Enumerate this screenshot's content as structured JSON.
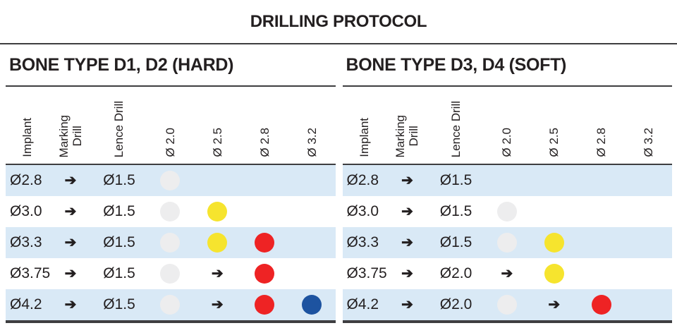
{
  "title": "DRILLING PROTOCOL",
  "glyphs": {
    "arrow": "➔"
  },
  "colors": {
    "theme": {
      "row-alt": "#d9e9f6",
      "line": "#3e3e40",
      "text": "#231f20"
    },
    "dots": {
      "gray": "#ededee",
      "yellow": "#f6e42e",
      "red": "#ee2324",
      "blue": "#1d53a0"
    }
  },
  "tables": [
    {
      "section_title": "BONE TYPE D1, D2 (HARD)",
      "columns": [
        "Implant",
        "Marking\nDrill",
        "Lence Drill",
        "Ø 2.0",
        "Ø 2.5",
        "Ø 2.8",
        "Ø 3.2"
      ],
      "rows": [
        {
          "implant": "Ø2.8",
          "marking": "arrow",
          "lence": "Ø1.5",
          "cells": [
            "gray",
            "",
            "",
            ""
          ]
        },
        {
          "implant": "Ø3.0",
          "marking": "arrow",
          "lence": "Ø1.5",
          "cells": [
            "gray",
            "yellow",
            "",
            ""
          ]
        },
        {
          "implant": "Ø3.3",
          "marking": "arrow",
          "lence": "Ø1.5",
          "cells": [
            "gray",
            "yellow",
            "red",
            ""
          ]
        },
        {
          "implant": "Ø3.75",
          "marking": "arrow",
          "lence": "Ø1.5",
          "cells": [
            "gray",
            "arrow",
            "red",
            ""
          ]
        },
        {
          "implant": "Ø4.2",
          "marking": "arrow",
          "lence": "Ø1.5",
          "cells": [
            "gray",
            "arrow",
            "red",
            "blue"
          ]
        }
      ]
    },
    {
      "section_title": "BONE TYPE D3, D4 (SOFT)",
      "columns": [
        "Implant",
        "Marking\nDrill",
        "Lence Drill",
        "Ø 2.0",
        "Ø 2.5",
        "Ø 2.8",
        "Ø 3.2"
      ],
      "rows": [
        {
          "implant": "Ø2.8",
          "marking": "arrow",
          "lence": "Ø1.5",
          "cells": [
            "",
            "",
            "",
            ""
          ]
        },
        {
          "implant": "Ø3.0",
          "marking": "arrow",
          "lence": "Ø1.5",
          "cells": [
            "gray",
            "",
            "",
            ""
          ]
        },
        {
          "implant": "Ø3.3",
          "marking": "arrow",
          "lence": "Ø1.5",
          "cells": [
            "gray",
            "yellow",
            "",
            ""
          ]
        },
        {
          "implant": "Ø3.75",
          "marking": "arrow",
          "lence": "Ø2.0",
          "cells": [
            "arrow",
            "yellow",
            "",
            ""
          ]
        },
        {
          "implant": "Ø4.2",
          "marking": "arrow",
          "lence": "Ø2.0",
          "cells": [
            "gray",
            "arrow",
            "red",
            ""
          ]
        }
      ]
    }
  ]
}
